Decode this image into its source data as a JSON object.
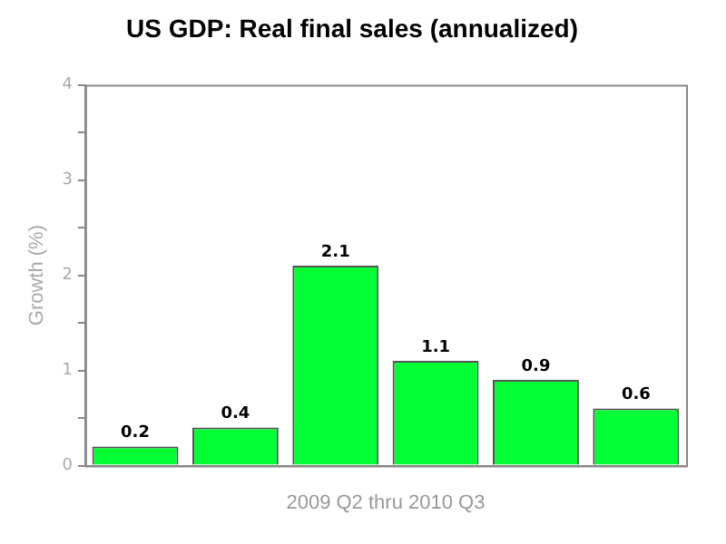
{
  "chart_data": {
    "type": "bar",
    "title": "US GDP: Real final sales (annualized)",
    "xlabel": "2009 Q2 thru 2010 Q3",
    "ylabel": "Growth (%)",
    "categories": [
      null,
      null,
      null,
      null,
      null,
      null
    ],
    "values": [
      0.2,
      0.4,
      2.1,
      1.1,
      0.9,
      0.6
    ],
    "color": "#00ff33",
    "data_labels": true,
    "ylim": [
      0,
      4
    ],
    "yticks": [
      0,
      {
        "value": 0.5,
        "label": null
      },
      1,
      {
        "value": 1.5,
        "label": null
      },
      2,
      {
        "value": 2.5,
        "label": null
      },
      3,
      {
        "value": 3.5,
        "label": null
      },
      4
    ],
    "tick_labels": "y"
  }
}
